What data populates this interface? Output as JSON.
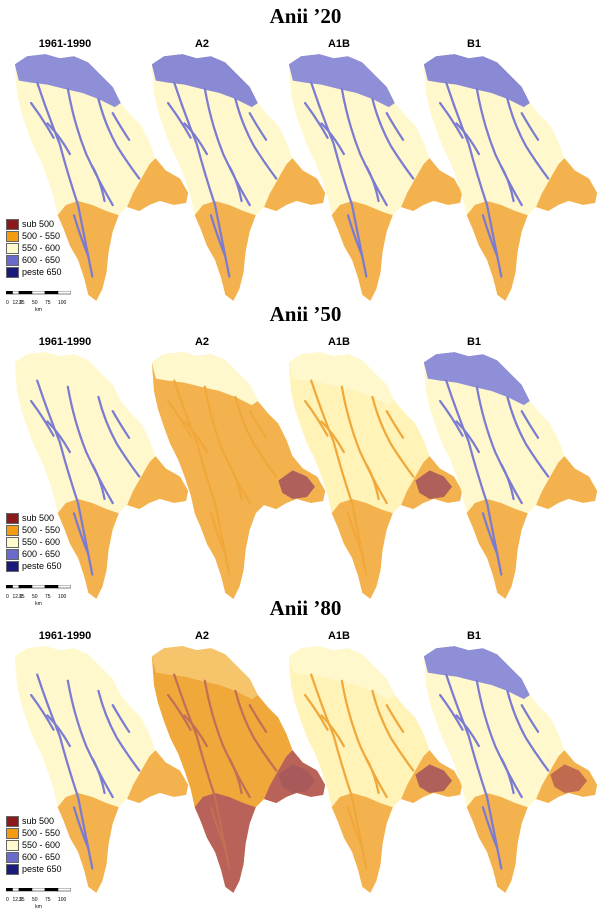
{
  "periods": [
    {
      "title": "Anii ’20",
      "scenarios": [
        {
          "label": "1961-1990",
          "north": "#8f8fd8",
          "center": "#fff8cc",
          "rivers": "#7b7bd2",
          "south": "#f4b24e",
          "delta": null
        },
        {
          "label": "A2",
          "north": "#8a8ad4",
          "center": "#fff8cc",
          "rivers": "#7b7bd2",
          "south": "#f4b24e",
          "delta": null
        },
        {
          "label": "A1B",
          "north": "#8f8fd8",
          "center": "#fff8cc",
          "rivers": "#7b7bd2",
          "south": "#f4b24e",
          "delta": null
        },
        {
          "label": "B1",
          "north": "#8a8ad4",
          "center": "#fff8cc",
          "rivers": "#7b7bd2",
          "south": "#f4b24e",
          "delta": null
        }
      ]
    },
    {
      "title": "Anii ’50",
      "scenarios": [
        {
          "label": "1961-1990",
          "north": "#fff8cc",
          "center": "#fff8cc",
          "rivers": "#7b7bd2",
          "south": "#f4b24e",
          "delta": null
        },
        {
          "label": "A2",
          "north": "#fff8cc",
          "center": "#f4b24e",
          "rivers": "#f0a83a",
          "south": "#f4b24e",
          "delta": "#b0605a"
        },
        {
          "label": "A1B",
          "north": "#fff8cc",
          "center": "#fff3b8",
          "rivers": "#f0a83a",
          "south": "#f4b24e",
          "delta": "#b0605a"
        },
        {
          "label": "B1",
          "north": "#8f8fd8",
          "center": "#fff8cc",
          "rivers": "#7b7bd2",
          "south": "#f4b24e",
          "delta": null
        }
      ]
    },
    {
      "title": "Anii ’80",
      "scenarios": [
        {
          "label": "1961-1990",
          "north": "#fff8cc",
          "center": "#fff8cc",
          "rivers": "#7b7bd2",
          "south": "#f4b24e",
          "delta": null
        },
        {
          "label": "A2",
          "north": "#f6c46a",
          "center": "#f0a83a",
          "rivers": "#c07055",
          "south": "#b8625a",
          "delta": "#a85a5a"
        },
        {
          "label": "A1B",
          "north": "#fff8cc",
          "center": "#fff3b8",
          "rivers": "#f0a83a",
          "south": "#f4b24e",
          "delta": "#b0605a"
        },
        {
          "label": "B1",
          "north": "#8f8fd8",
          "center": "#fff8cc",
          "rivers": "#7b7bd2",
          "south": "#f4b24e",
          "delta": "#c06a50"
        }
      ]
    }
  ],
  "legend": [
    {
      "label": "sub 500",
      "color": "#8b1a1a"
    },
    {
      "label": "500 - 550",
      "color": "#f39c12"
    },
    {
      "label": "550 - 600",
      "color": "#fffacd"
    },
    {
      "label": "600 - 650",
      "color": "#6a6acd"
    },
    {
      "label": "peste 650",
      "color": "#1a1a7a"
    }
  ],
  "scale": {
    "ticks": [
      "0",
      "12.5",
      "25",
      "50",
      "75",
      "100"
    ],
    "unit": "km"
  }
}
